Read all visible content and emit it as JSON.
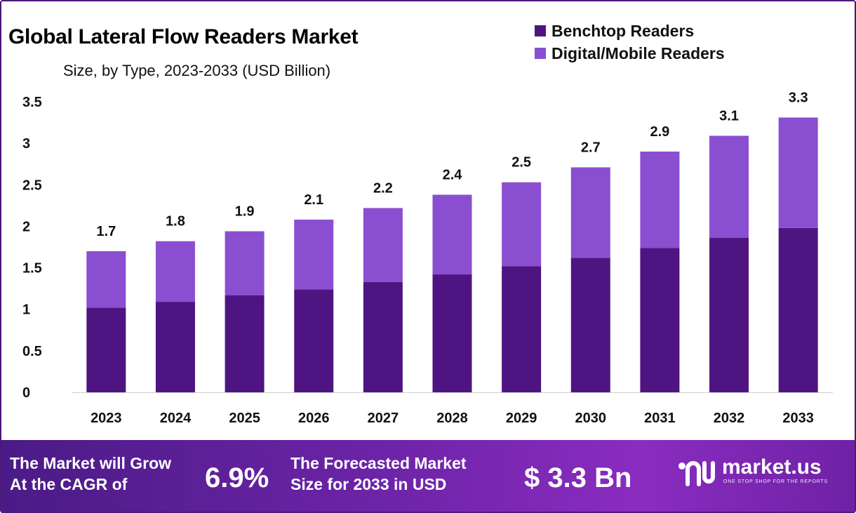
{
  "chart_data": {
    "type": "bar",
    "stacked": true,
    "title": "Global Lateral Flow Readers Market",
    "subtitle": "Size, by Type, 2023-2033 (USD Billion)",
    "categories": [
      "2023",
      "2024",
      "2025",
      "2026",
      "2027",
      "2028",
      "2029",
      "2030",
      "2031",
      "2032",
      "2033"
    ],
    "series": [
      {
        "name": "Benchtop Readers",
        "color": "#4e1582",
        "values": [
          1.02,
          1.09,
          1.17,
          1.24,
          1.33,
          1.42,
          1.52,
          1.62,
          1.74,
          1.86,
          1.98
        ]
      },
      {
        "name": "Digital/Mobile Readers",
        "color": "#8a4fd0",
        "values": [
          0.68,
          0.73,
          0.77,
          0.84,
          0.89,
          0.96,
          1.01,
          1.09,
          1.16,
          1.23,
          1.33
        ]
      }
    ],
    "totals_labels": [
      "1.7",
      "1.8",
      "1.9",
      "2.1",
      "2.2",
      "2.4",
      "2.5",
      "2.7",
      "2.9",
      "3.1",
      "3.3"
    ],
    "ylim": [
      0,
      3.5
    ],
    "yticks": [
      "0",
      "0.5",
      "1",
      "1.5",
      "2",
      "2.5",
      "3",
      "3.5"
    ],
    "xlabel": "",
    "ylabel": "",
    "legend_position": "top-right",
    "grid": false
  },
  "banner": {
    "cagr_text_1": "The Market will Grow",
    "cagr_text_2": "At the CAGR of",
    "cagr_value": "6.9%",
    "forecast_text_1": "The Forecasted Market",
    "forecast_text_2": "Size for 2033 in USD",
    "forecast_value": "$ 3.3 Bn",
    "logo_name": "market.us",
    "logo_tagline": "ONE STOP SHOP FOR THE REPORTS"
  },
  "colors": {
    "benchtop": "#4e1582",
    "digital": "#8a4fd0",
    "banner": "#6d24a8"
  }
}
